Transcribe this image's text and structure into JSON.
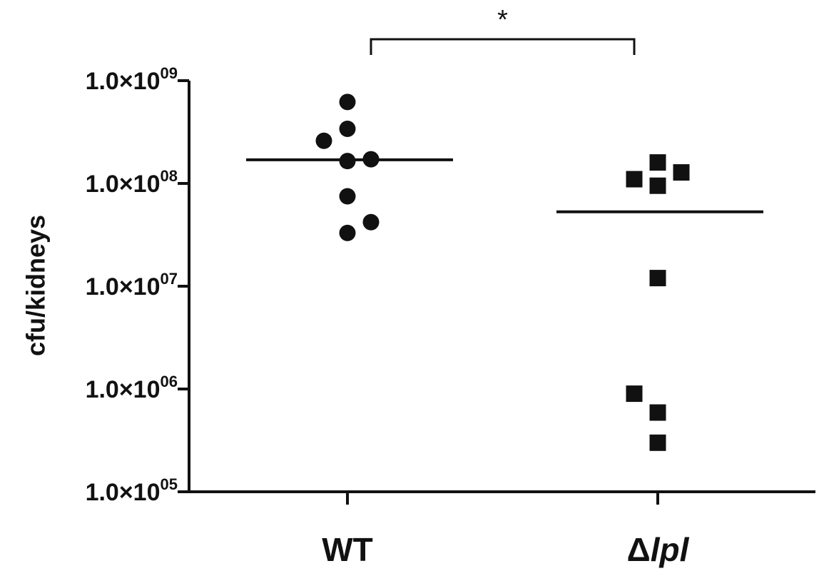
{
  "chart_data": {
    "type": "scatter",
    "ylabel": "cfu/kidneys",
    "y_scale": "log",
    "ylim": [
      100000,
      1000000000
    ],
    "y_ticks": [
      {
        "value": 100000,
        "mantissa": "1.0×10",
        "exponent": "05"
      },
      {
        "value": 1000000,
        "mantissa": "1.0×10",
        "exponent": "06"
      },
      {
        "value": 10000000,
        "mantissa": "1.0×10",
        "exponent": "07"
      },
      {
        "value": 100000000,
        "mantissa": "1.0×10",
        "exponent": "08"
      },
      {
        "value": 1000000000,
        "mantissa": "1.0×10",
        "exponent": "09"
      }
    ],
    "categories": [
      {
        "prefix": "WT",
        "italic": ""
      },
      {
        "prefix": "Δ",
        "italic": "lpl"
      }
    ],
    "series": [
      {
        "marker": "circle",
        "median": 170000000,
        "points": [
          {
            "dx": 0,
            "y": 620000000
          },
          {
            "dx": 0,
            "y": 340000000
          },
          {
            "dx": -1,
            "y": 260000000
          },
          {
            "dx": 0,
            "y": 165000000
          },
          {
            "dx": 1,
            "y": 172000000
          },
          {
            "dx": 0,
            "y": 75000000
          },
          {
            "dx": 0,
            "y": 33000000
          },
          {
            "dx": 1,
            "y": 42000000
          }
        ]
      },
      {
        "marker": "square",
        "median": 53000000,
        "points": [
          {
            "dx": -1,
            "y": 110000000
          },
          {
            "dx": 0,
            "y": 160000000
          },
          {
            "dx": 0,
            "y": 95000000
          },
          {
            "dx": 1,
            "y": 128000000
          },
          {
            "dx": 0,
            "y": 12000000
          },
          {
            "dx": -1,
            "y": 900000
          },
          {
            "dx": 0,
            "y": 590000
          },
          {
            "dx": 0,
            "y": 300000
          }
        ]
      }
    ],
    "significance": {
      "label": "*",
      "between": [
        0,
        1
      ]
    },
    "grid": false,
    "colors": {
      "ink": "#111111"
    }
  }
}
